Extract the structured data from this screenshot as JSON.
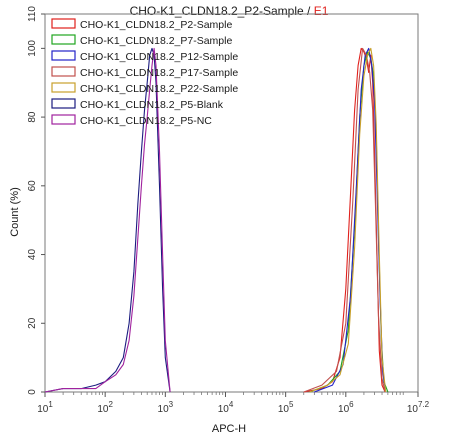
{
  "chart_data": {
    "type": "line",
    "title": "CHO-K1_CLDN18.2_P2-Sample",
    "title_separator": "/",
    "gate": "E1",
    "gate_color": "#e0201c",
    "xlabel": "APC-H",
    "ylabel": "Count  (%)",
    "x_scale": "log10",
    "xlim": [
      10,
      15848932
    ],
    "ylim": [
      0,
      110
    ],
    "x_ticks": [
      {
        "value": 10,
        "label": "10",
        "exp": "1"
      },
      {
        "value": 100,
        "label": "10",
        "exp": "2"
      },
      {
        "value": 1000,
        "label": "10",
        "exp": "3"
      },
      {
        "value": 10000,
        "label": "10",
        "exp": "4"
      },
      {
        "value": 100000,
        "label": "10",
        "exp": "5"
      },
      {
        "value": 1000000,
        "label": "10",
        "exp": "6"
      },
      {
        "value": 15848932,
        "label": "10",
        "exp": "7.2"
      }
    ],
    "y_ticks": [
      0,
      20,
      40,
      60,
      80,
      100,
      110
    ],
    "legend_position": "top-left",
    "series": [
      {
        "name": "CHO-K1_CLDN18.2_P2-Sample",
        "color": "#e0201c",
        "x": [
          200000,
          400000,
          600000,
          800000,
          1000000,
          1200000,
          1400000,
          1600000,
          1800000,
          2000000,
          2200000,
          2400000,
          2600000,
          2800000,
          3000000,
          3300000,
          3600000,
          4000000,
          4500000
        ],
        "y": [
          0,
          1,
          3,
          10,
          30,
          58,
          82,
          95,
          100,
          99,
          97,
          93,
          98,
          90,
          70,
          40,
          12,
          2,
          0
        ]
      },
      {
        "name": "CHO-K1_CLDN18.2_P7-Sample",
        "color": "#1fa51f",
        "x": [
          250000,
          500000,
          800000,
          1100000,
          1400000,
          1700000,
          2000000,
          2300000,
          2600000,
          2900000,
          3200000,
          3500000,
          3900000,
          4300000,
          5000000
        ],
        "y": [
          0,
          2,
          6,
          18,
          48,
          80,
          95,
          99,
          97,
          92,
          75,
          45,
          15,
          3,
          0
        ]
      },
      {
        "name": "CHO-K1_CLDN18.2_P12-Sample",
        "color": "#2323c8",
        "x": [
          300000,
          600000,
          900000,
          1200000,
          1500000,
          1800000,
          2100000,
          2400000,
          2700000,
          3000000,
          3300000,
          3700000,
          4100000,
          4600000
        ],
        "y": [
          0,
          2,
          8,
          28,
          60,
          88,
          98,
          100,
          95,
          85,
          60,
          28,
          6,
          0
        ]
      },
      {
        "name": "CHO-K1_CLDN18.2_P17-Sample",
        "color": "#c0504d",
        "x": [
          200000,
          400000,
          700000,
          1000000,
          1300000,
          1600000,
          1900000,
          2200000,
          2500000,
          2800000,
          3100000,
          3500000,
          4000000,
          4500000
        ],
        "y": [
          0,
          2,
          6,
          20,
          55,
          88,
          100,
          98,
          93,
          82,
          55,
          22,
          4,
          0
        ]
      },
      {
        "name": "CHO-K1_CLDN18.2_P22-Sample",
        "color": "#c8a02c",
        "x": [
          250000,
          500000,
          800000,
          1100000,
          1400000,
          1700000,
          2000000,
          2300000,
          2600000,
          2900000,
          3200000,
          3600000,
          4000000,
          4600000
        ],
        "y": [
          0,
          2,
          5,
          14,
          42,
          75,
          92,
          98,
          100,
          95,
          78,
          40,
          10,
          0
        ]
      },
      {
        "name": "CHO-K1_CLDN18.2_P5-Blank",
        "color": "#1c1c80",
        "x": [
          10,
          20,
          40,
          70,
          100,
          150,
          200,
          250,
          300,
          350,
          400,
          450,
          500,
          550,
          600,
          650,
          700,
          800,
          900,
          1000,
          1200
        ],
        "y": [
          0,
          1,
          1,
          2,
          3,
          6,
          10,
          20,
          35,
          55,
          70,
          82,
          90,
          98,
          100,
          98,
          90,
          60,
          30,
          10,
          0
        ]
      },
      {
        "name": "CHO-K1_CLDN18.2_P5-NC",
        "color": "#a0229e",
        "x": [
          10,
          20,
          40,
          70,
          100,
          150,
          200,
          250,
          300,
          350,
          400,
          450,
          500,
          550,
          600,
          650,
          700,
          800,
          900,
          1000,
          1200
        ],
        "y": [
          0,
          1,
          1,
          1,
          3,
          5,
          8,
          15,
          28,
          45,
          60,
          72,
          80,
          88,
          95,
          100,
          95,
          70,
          40,
          15,
          0
        ]
      }
    ]
  }
}
